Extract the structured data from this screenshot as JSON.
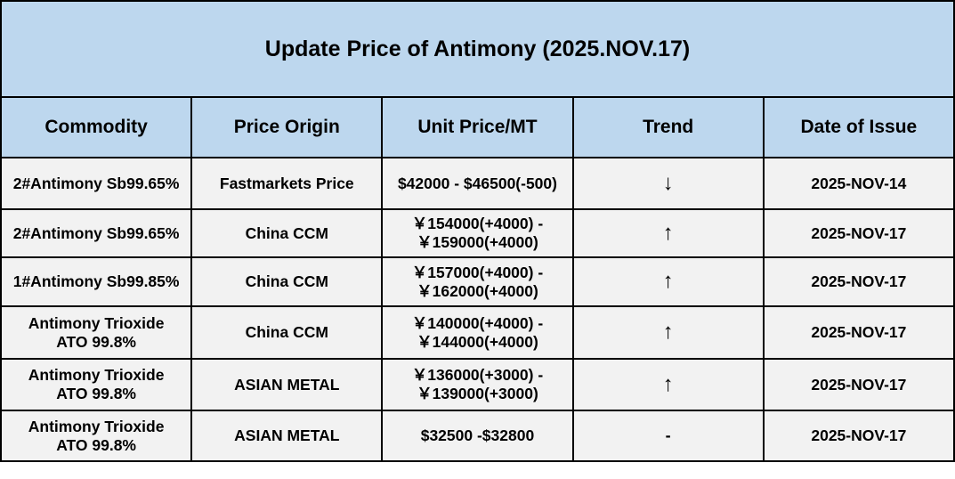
{
  "title": "Update Price of Antimony (2025.NOV.17)",
  "columns": [
    "Commodity",
    "Price Origin",
    "Unit Price/MT",
    "Trend",
    "Date of Issue"
  ],
  "rows": [
    {
      "commodity": "2#Antimony  Sb99.65%",
      "origin": "Fastmarkets Price",
      "price": "$42000 - $46500(-500)",
      "trend": "↓",
      "trend_icon": "arrow-down-icon",
      "date": "2025-NOV-14"
    },
    {
      "commodity": "2#Antimony  Sb99.65%",
      "origin": "China CCM",
      "price": "￥154000(+4000) -￥159000(+4000)",
      "trend": "↑",
      "trend_icon": "arrow-up-icon",
      "date": "2025-NOV-17"
    },
    {
      "commodity": "1#Antimony  Sb99.85%",
      "origin": "China CCM",
      "price": "￥157000(+4000) -￥162000(+4000)",
      "trend": "↑",
      "trend_icon": "arrow-up-icon",
      "date": "2025-NOV-17"
    },
    {
      "commodity": "Antimony Trioxide\nATO 99.8%",
      "origin": "China CCM",
      "price": "￥140000(+4000)  -￥144000(+4000)",
      "trend": "↑",
      "trend_icon": "arrow-up-icon",
      "date": "2025-NOV-17"
    },
    {
      "commodity": "Antimony Trioxide\nATO 99.8%",
      "origin": "ASIAN METAL",
      "price": "￥136000(+3000)  -￥139000(+3000)",
      "trend": "↑",
      "trend_icon": "arrow-up-icon",
      "date": "2025-NOV-17"
    },
    {
      "commodity": "Antimony Trioxide\nATO 99.8%",
      "origin": "ASIAN METAL",
      "price": "$32500 -$32800",
      "trend": "-",
      "trend_icon": "dash-icon",
      "date": "2025-NOV-17"
    }
  ],
  "colors": {
    "header_bg": "#BDD7EE",
    "cell_bg": "#F2F2F2",
    "border": "#000000"
  }
}
